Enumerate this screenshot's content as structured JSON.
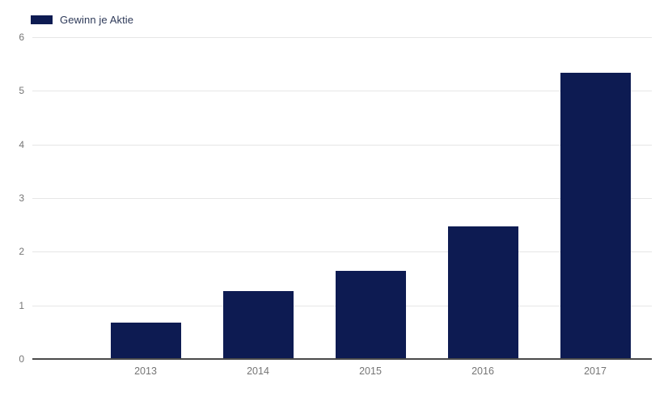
{
  "chart_data": {
    "type": "bar",
    "title": "",
    "xlabel": "",
    "ylabel": "",
    "categories": [
      "2013",
      "2014",
      "2015",
      "2016",
      "2017"
    ],
    "series": [
      {
        "name": "Gewinn je Aktie",
        "color": "#0d1b52",
        "values": [
          0.68,
          1.26,
          1.64,
          2.47,
          5.33
        ]
      }
    ],
    "ylim": [
      0,
      6
    ],
    "yticks": [
      0,
      1,
      2,
      3,
      4,
      5,
      6
    ],
    "grid": true,
    "legend_position": "top-left",
    "colors": {
      "bar": "#0d1b52",
      "legend_text": "#2e3a59",
      "axis_label": "#757575",
      "gridline": "#e6e6e6",
      "baseline": "#4a4a4a",
      "background": "#ffffff"
    }
  }
}
